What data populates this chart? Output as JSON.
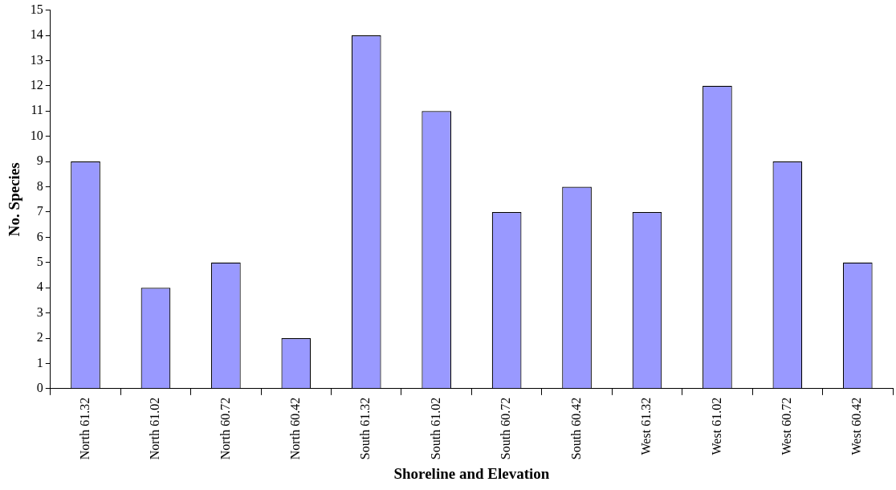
{
  "chart_data": {
    "type": "bar",
    "xlabel": "Shoreline and Elevation",
    "ylabel": "No. Species",
    "categories": [
      "North 61.32",
      "North 61.02",
      "North 60.72",
      "North 60.42",
      "South 61.32",
      "South 61.02",
      "South 60.72",
      "South 60.42",
      "West 61.32",
      "West 61.02",
      "West 60.72",
      "West 60.42"
    ],
    "values": [
      9,
      4,
      5,
      2,
      14,
      11,
      7,
      8,
      7,
      12,
      9,
      5
    ],
    "color": "#9999ff",
    "ylim": [
      0,
      15
    ],
    "yticks": [
      0,
      1,
      2,
      3,
      4,
      5,
      6,
      7,
      8,
      9,
      10,
      11,
      12,
      13,
      14,
      15
    ],
    "grid": false,
    "legend": false
  }
}
